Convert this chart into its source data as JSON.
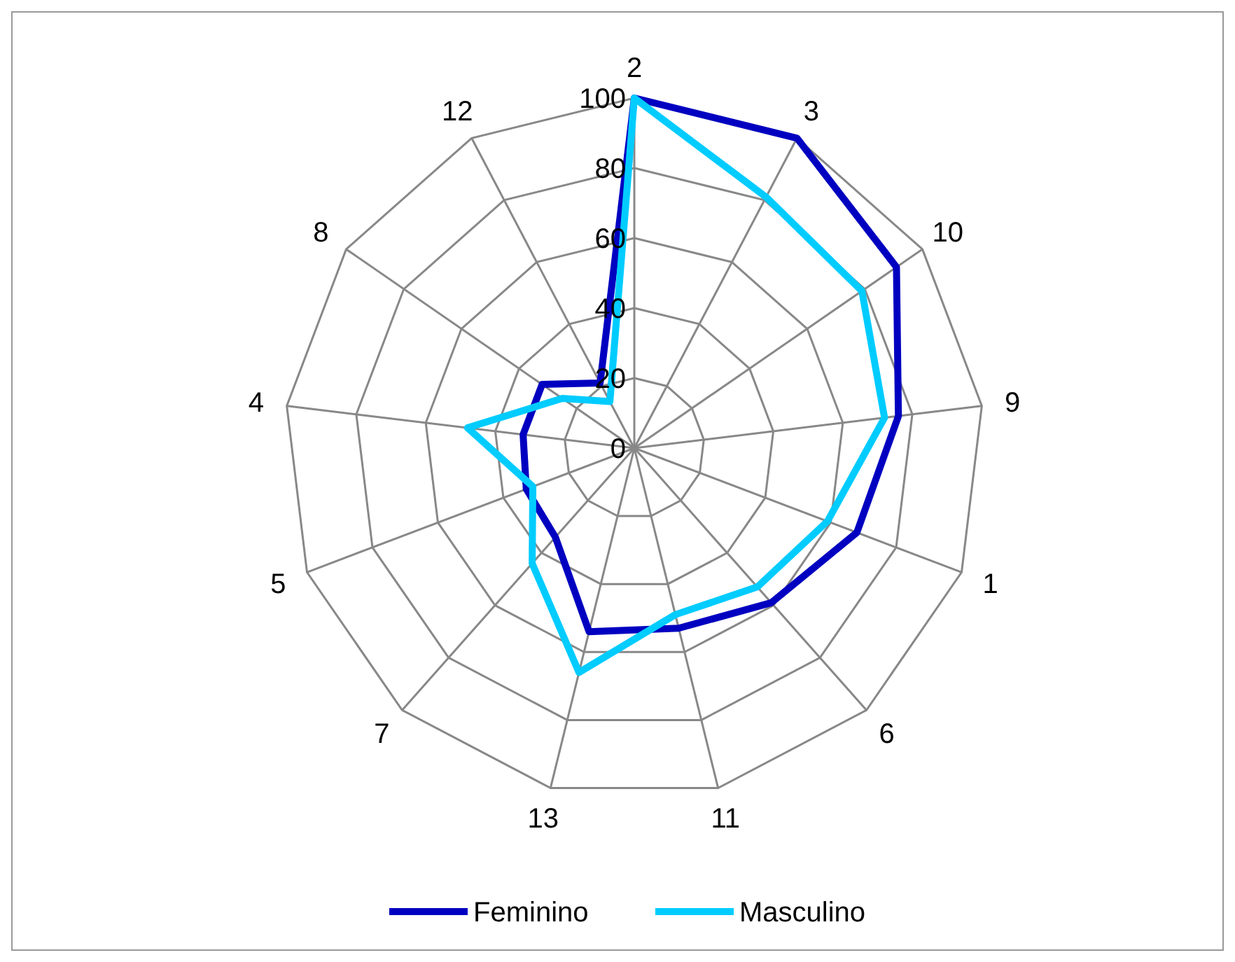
{
  "chart_data": {
    "type": "radar",
    "categories": [
      "2",
      "3",
      "10",
      "9",
      "1",
      "6",
      "11",
      "13",
      "7",
      "5",
      "4",
      "8",
      "12"
    ],
    "series": [
      {
        "name": "Feminino",
        "color": "#0000c0",
        "values": [
          100,
          100,
          91,
          76,
          68,
          59,
          53,
          54,
          34,
          33,
          32,
          32,
          21
        ]
      },
      {
        "name": "Masculino",
        "color": "#00ccff",
        "values": [
          100,
          81,
          79,
          72,
          59,
          53,
          49,
          66,
          44,
          31,
          48,
          25,
          15
        ]
      }
    ],
    "ylim": [
      0,
      100
    ],
    "yticks": [
      0,
      20,
      40,
      60,
      80,
      100
    ],
    "grid": true,
    "legend": "bottom",
    "marker": "none"
  }
}
